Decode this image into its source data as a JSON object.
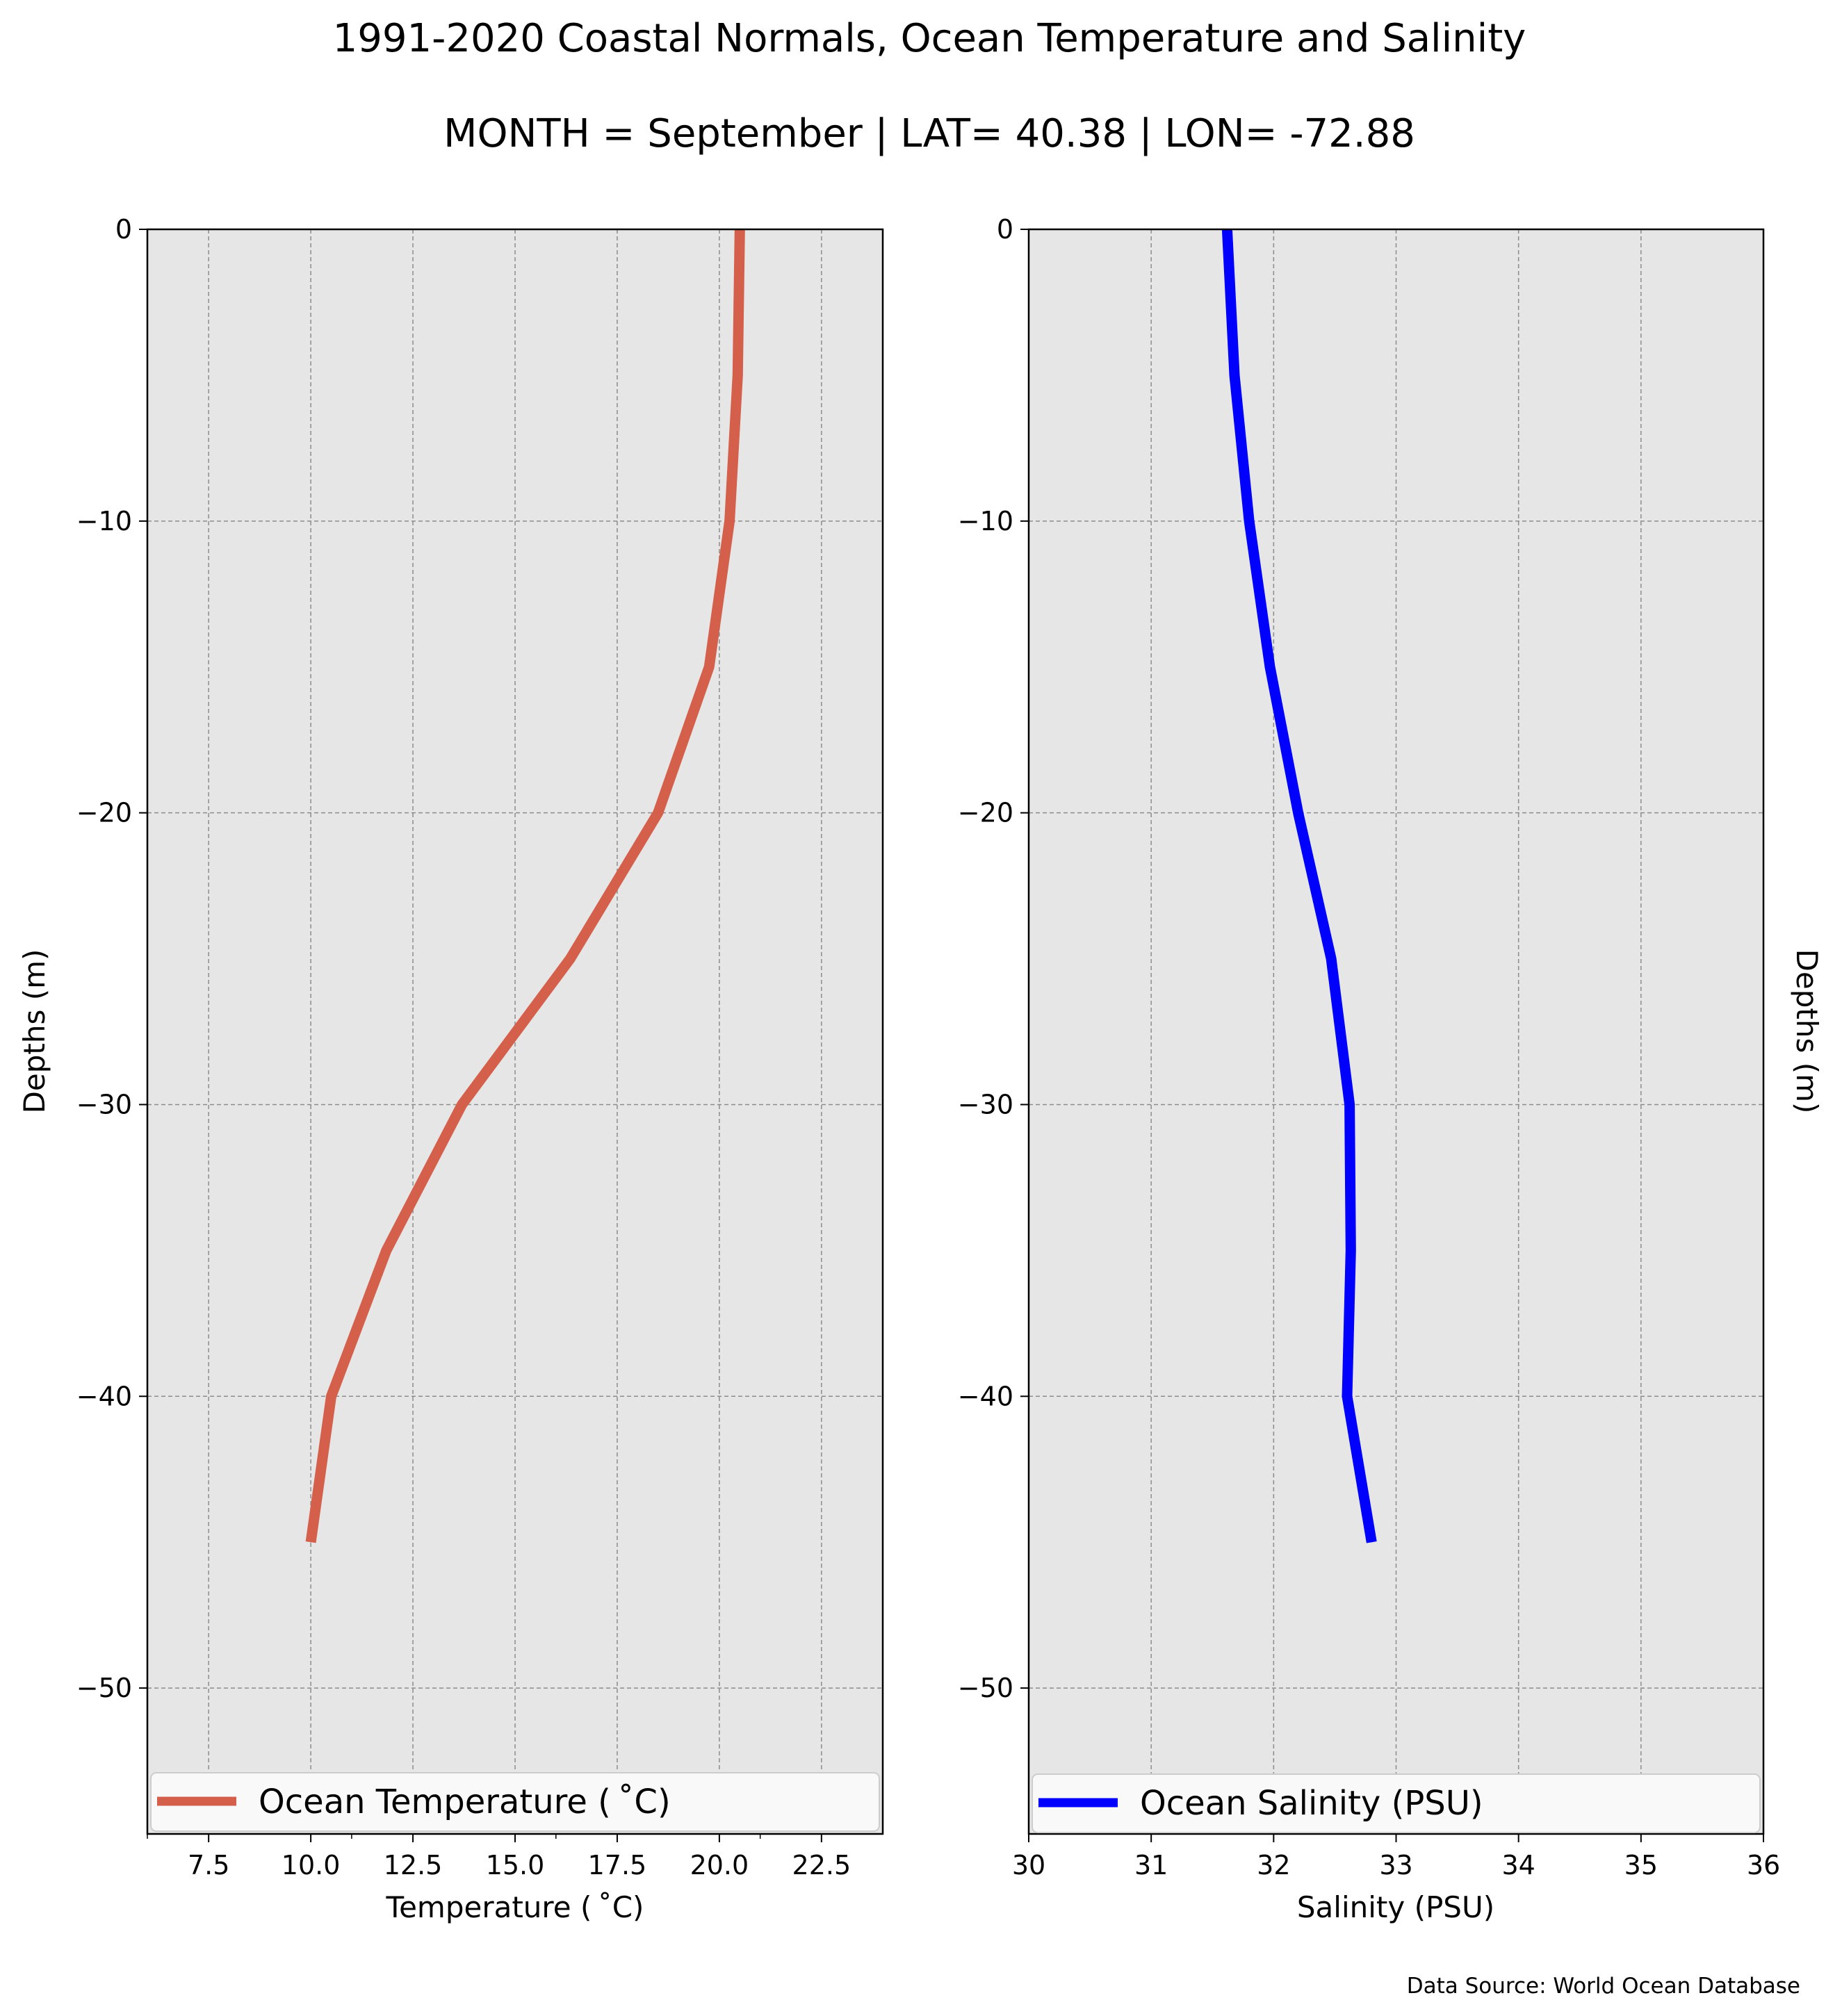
{
  "title_line1": "1991-2020 Coastal Normals, Ocean Temperature and Salinity",
  "title_line2": "MONTH = September | LAT= 40.38 | LON= -72.88",
  "source_note": "Data Source: World Ocean Database",
  "colors": {
    "temperature": "#d45f4b",
    "salinity": "#0000ff",
    "panel_bg": "#e6e6e6",
    "grid": "#8c8c8c"
  },
  "chart_data": [
    {
      "type": "line",
      "xlabel": "Temperature ($^\\circ$C)",
      "xlabel_display": "Temperature ( ˚C)",
      "ylabel": "Depths (m)",
      "xlim": [
        6,
        24
      ],
      "ylim": [
        -55,
        0
      ],
      "x_ticks": [
        7.5,
        10.0,
        12.5,
        15.0,
        17.5,
        20.0,
        22.5
      ],
      "x_tick_labels": [
        "7.5",
        "10.0",
        "12.5",
        "15.0",
        "17.5",
        "20.0",
        "22.5"
      ],
      "x_minor_ticks": [
        6,
        11,
        16,
        21
      ],
      "y_ticks": [
        0,
        -10,
        -20,
        -30,
        -40,
        -50
      ],
      "y_tick_labels": [
        "0",
        "−10",
        "−20",
        "−30",
        "−40",
        "−50"
      ],
      "grid": true,
      "legend_position": "bottom",
      "series": [
        {
          "name": "Ocean Temperature ( ˚C)",
          "color": "#d45f4b",
          "x": [
            20.5,
            20.45,
            20.25,
            19.75,
            18.5,
            16.35,
            13.7,
            11.85,
            10.5,
            10.0
          ],
          "y": [
            0,
            -5,
            -10,
            -15,
            -20,
            -25,
            -30,
            -35,
            -40,
            -45
          ]
        }
      ]
    },
    {
      "type": "line",
      "xlabel": "Salinity (PSU)",
      "ylabel": "Depths (m)",
      "xlim": [
        30,
        36
      ],
      "ylim": [
        -55,
        0
      ],
      "x_ticks": [
        30,
        31,
        32,
        33,
        34,
        35,
        36
      ],
      "x_tick_labels": [
        "30",
        "31",
        "32",
        "33",
        "34",
        "35",
        "36"
      ],
      "y_ticks": [
        0,
        -10,
        -20,
        -30,
        -40,
        -50
      ],
      "y_tick_labels": [
        "0",
        "−10",
        "−20",
        "−30",
        "−40",
        "−50"
      ],
      "grid": true,
      "legend_position": "bottom",
      "series": [
        {
          "name": "Ocean Salinity (PSU)",
          "color": "#0000ff",
          "x": [
            31.62,
            31.68,
            31.8,
            31.97,
            32.2,
            32.47,
            32.62,
            32.63,
            32.6,
            32.8
          ],
          "y": [
            0,
            -5,
            -10,
            -15,
            -20,
            -25,
            -30,
            -35,
            -40,
            -45
          ]
        }
      ]
    }
  ]
}
